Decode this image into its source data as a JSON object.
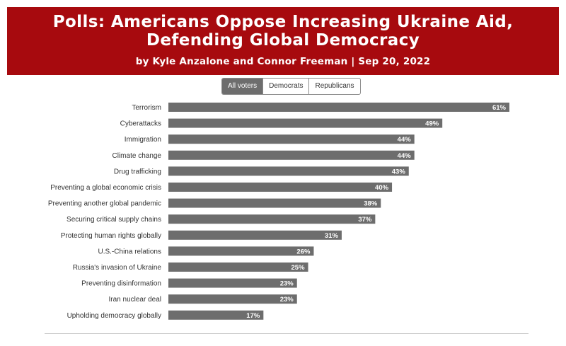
{
  "header": {
    "title_line1": "Polls: Americans Oppose Increasing Ukraine Aid,",
    "title_line2": "Defending Global Democracy",
    "byline": "by Kyle Anzalone and Connor Freeman | Sep 20, 2022"
  },
  "tabs": [
    {
      "label": "All voters",
      "active": true
    },
    {
      "label": "Democrats",
      "active": false
    },
    {
      "label": "Republicans",
      "active": false
    }
  ],
  "colors": {
    "header_bg": "#a70a0e",
    "bar": "#6d6d6d",
    "label_text": "#333333"
  },
  "chart_data": {
    "type": "bar",
    "orientation": "horizontal",
    "categories": [
      "Terrorism",
      "Cyberattacks",
      "Immigration",
      "Climate change",
      "Drug trafficking",
      "Preventing a global economic crisis",
      "Preventing another global pandemic",
      "Securing critical supply chains",
      "Protecting human rights globally",
      "U.S.-China relations",
      "Russia's invasion of Ukraine",
      "Preventing disinformation",
      "Iran nuclear deal",
      "Upholding democracy globally"
    ],
    "values": [
      61,
      49,
      44,
      44,
      43,
      40,
      38,
      37,
      31,
      26,
      25,
      23,
      23,
      17
    ],
    "value_labels": [
      "61%",
      "49%",
      "44%",
      "44%",
      "43%",
      "40%",
      "38%",
      "37%",
      "31%",
      "26%",
      "25%",
      "23%",
      "23%",
      "17%"
    ],
    "xlim": [
      0,
      61
    ],
    "grid": false,
    "legend": "none"
  }
}
